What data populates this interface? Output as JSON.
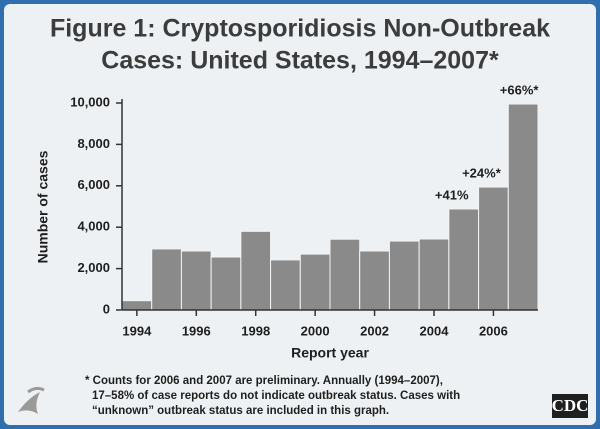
{
  "chart_data": {
    "type": "bar",
    "title_lines": [
      "Figure 1: Cryptosporidiosis Non-Outbreak",
      "Cases: United States, 1994–2007*"
    ],
    "x_label": "Report year",
    "y_label": "Number of cases",
    "x": [
      1994,
      1995,
      1996,
      1997,
      1998,
      1999,
      2000,
      2001,
      2002,
      2003,
      2004,
      2005,
      2006,
      2007
    ],
    "values": [
      450,
      2950,
      2850,
      2560,
      3800,
      2420,
      2700,
      3420,
      2850,
      3330,
      3430,
      4880,
      5940,
      9950
    ],
    "color": "#8a8a8a",
    "xlim": [
      1993.5,
      2007.5
    ],
    "xticks": [
      1994,
      1996,
      1998,
      2000,
      2002,
      2004,
      2006
    ],
    "ylim": [
      0,
      10000
    ],
    "yticks": [
      0,
      {
        "value": 2000,
        "label": "2,000"
      },
      {
        "value": 4000,
        "label": "4,000"
      },
      {
        "value": 6000,
        "label": "6,000"
      },
      {
        "value": 8000,
        "label": "8,000"
      },
      {
        "value": 10000,
        "label": "10,000"
      }
    ],
    "annotations": [
      "+41%",
      "+24%*",
      "+66%*"
    ],
    "footnote_lines": [
      "* Counts for 2006 and 2007 are preliminary. Annually (1994–2007),",
      "17–58% of case reports do not indicate outbreak status. Cases with",
      "“unknown” outbreak status are included in this graph."
    ],
    "logo": "CDC"
  }
}
